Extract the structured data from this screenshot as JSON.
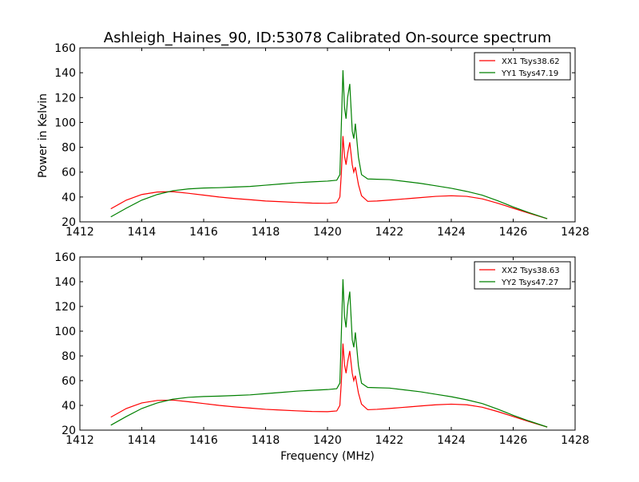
{
  "figure": {
    "title": "Ashleigh_Haines_90, ID:53078 Calibrated On-source spectrum",
    "ylabel": "Power in Kelvin",
    "xlabel": "Frequency (MHz)"
  },
  "colors": {
    "xx": "#ff0000",
    "yy": "#008000"
  },
  "chart_data": [
    {
      "type": "line",
      "title": "Ashleigh_Haines_90, ID:53078 Calibrated On-source spectrum",
      "ylabel": "Power in Kelvin",
      "xlabel": "",
      "xlim": [
        1412,
        1428
      ],
      "ylim": [
        20,
        160
      ],
      "xticks": [
        1412,
        1414,
        1416,
        1418,
        1420,
        1422,
        1424,
        1426,
        1428
      ],
      "yticks": [
        20,
        40,
        60,
        80,
        100,
        120,
        140,
        160
      ],
      "grid": false,
      "legend": "top-right",
      "series": [
        {
          "name": "XX1 Tsys38.62",
          "color": "#ff0000",
          "x": [
            1413.0,
            1413.5,
            1414.0,
            1414.5,
            1415.0,
            1415.5,
            1416.0,
            1416.5,
            1417.0,
            1417.5,
            1418.0,
            1418.5,
            1419.0,
            1419.5,
            1420.0,
            1420.3,
            1420.4,
            1420.45,
            1420.5,
            1420.55,
            1420.6,
            1420.65,
            1420.72,
            1420.8,
            1420.85,
            1420.9,
            1421.0,
            1421.1,
            1421.3,
            1421.6,
            1422.0,
            1422.5,
            1423.0,
            1423.5,
            1424.0,
            1424.5,
            1425.0,
            1425.5,
            1426.0,
            1426.5,
            1427.1
          ],
          "y": [
            30.5,
            37.5,
            42.0,
            44.0,
            44.3,
            43.0,
            41.5,
            40.0,
            38.8,
            37.8,
            36.8,
            36.2,
            35.6,
            35.1,
            34.9,
            35.5,
            40.0,
            60.0,
            89.0,
            73.0,
            66.0,
            75.0,
            84.0,
            66.0,
            60.0,
            64.0,
            50.0,
            41.0,
            36.5,
            36.8,
            37.5,
            38.5,
            39.5,
            40.5,
            41.0,
            40.5,
            38.5,
            35.0,
            31.0,
            27.0,
            22.5
          ]
        },
        {
          "name": "YY1 Tsys47.19",
          "color": "#008000",
          "x": [
            1413.0,
            1413.5,
            1414.0,
            1414.5,
            1415.0,
            1415.5,
            1416.0,
            1416.5,
            1417.0,
            1417.5,
            1418.0,
            1418.5,
            1419.0,
            1419.5,
            1420.0,
            1420.3,
            1420.4,
            1420.45,
            1420.5,
            1420.55,
            1420.6,
            1420.65,
            1420.72,
            1420.8,
            1420.85,
            1420.9,
            1421.0,
            1421.1,
            1421.3,
            1421.6,
            1422.0,
            1422.5,
            1423.0,
            1423.5,
            1424.0,
            1424.5,
            1425.0,
            1425.5,
            1426.0,
            1426.5,
            1427.1
          ],
          "y": [
            24.0,
            31.0,
            37.5,
            42.0,
            45.0,
            46.5,
            47.2,
            47.5,
            48.0,
            48.5,
            49.5,
            50.5,
            51.5,
            52.2,
            52.8,
            53.5,
            58.0,
            100.0,
            142.0,
            112.0,
            103.0,
            120.0,
            131.0,
            93.0,
            87.0,
            99.0,
            72.0,
            58.0,
            54.5,
            54.3,
            54.0,
            52.5,
            51.0,
            49.0,
            47.0,
            44.5,
            41.5,
            37.0,
            32.0,
            27.5,
            22.5
          ]
        }
      ]
    },
    {
      "type": "line",
      "title": "",
      "ylabel": "",
      "xlabel": "Frequency (MHz)",
      "xlim": [
        1412,
        1428
      ],
      "ylim": [
        20,
        160
      ],
      "xticks": [
        1412,
        1414,
        1416,
        1418,
        1420,
        1422,
        1424,
        1426,
        1428
      ],
      "yticks": [
        20,
        40,
        60,
        80,
        100,
        120,
        140,
        160
      ],
      "grid": false,
      "legend": "top-right",
      "series": [
        {
          "name": "XX2 Tsys38.63",
          "color": "#ff0000",
          "x": [
            1413.0,
            1413.5,
            1414.0,
            1414.5,
            1415.0,
            1415.5,
            1416.0,
            1416.5,
            1417.0,
            1417.5,
            1418.0,
            1418.5,
            1419.0,
            1419.5,
            1420.0,
            1420.3,
            1420.4,
            1420.45,
            1420.5,
            1420.55,
            1420.6,
            1420.65,
            1420.72,
            1420.8,
            1420.85,
            1420.9,
            1421.0,
            1421.1,
            1421.3,
            1421.6,
            1422.0,
            1422.5,
            1423.0,
            1423.5,
            1424.0,
            1424.5,
            1425.0,
            1425.5,
            1426.0,
            1426.5,
            1427.1
          ],
          "y": [
            30.5,
            37.5,
            42.0,
            44.0,
            44.3,
            43.0,
            41.5,
            40.0,
            38.8,
            37.8,
            36.8,
            36.2,
            35.6,
            35.1,
            34.9,
            35.5,
            40.0,
            60.0,
            90.0,
            73.0,
            66.0,
            75.0,
            84.0,
            66.0,
            60.0,
            64.0,
            50.0,
            41.0,
            36.5,
            36.8,
            37.5,
            38.5,
            39.5,
            40.5,
            41.0,
            40.5,
            38.5,
            35.0,
            31.0,
            27.0,
            22.5
          ]
        },
        {
          "name": "YY2 Tsys47.27",
          "color": "#008000",
          "x": [
            1413.0,
            1413.5,
            1414.0,
            1414.5,
            1415.0,
            1415.5,
            1416.0,
            1416.5,
            1417.0,
            1417.5,
            1418.0,
            1418.5,
            1419.0,
            1419.5,
            1420.0,
            1420.3,
            1420.4,
            1420.45,
            1420.5,
            1420.55,
            1420.6,
            1420.65,
            1420.72,
            1420.8,
            1420.85,
            1420.9,
            1421.0,
            1421.1,
            1421.3,
            1421.6,
            1422.0,
            1422.5,
            1423.0,
            1423.5,
            1424.0,
            1424.5,
            1425.0,
            1425.5,
            1426.0,
            1426.5,
            1427.1
          ],
          "y": [
            24.0,
            31.0,
            37.5,
            42.0,
            45.0,
            46.5,
            47.2,
            47.5,
            48.0,
            48.5,
            49.5,
            50.5,
            51.5,
            52.2,
            52.8,
            53.5,
            58.0,
            100.0,
            142.0,
            112.0,
            103.0,
            120.0,
            132.0,
            93.0,
            87.0,
            99.0,
            72.0,
            58.0,
            54.5,
            54.3,
            54.0,
            52.5,
            51.0,
            49.0,
            47.0,
            44.5,
            41.5,
            37.0,
            32.0,
            27.5,
            22.5
          ]
        }
      ]
    }
  ]
}
